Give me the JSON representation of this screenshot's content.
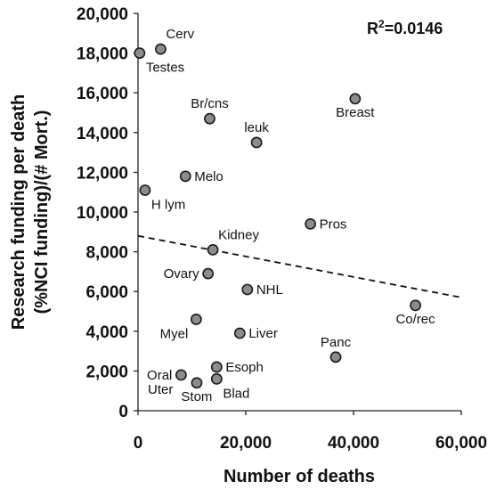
{
  "chart_data": {
    "type": "scatter",
    "xlabel": "Number of deaths",
    "ylabel_lines": [
      "Research funding per death",
      "(%NCI funding)/(# Mort.)"
    ],
    "xlim": [
      0,
      60000
    ],
    "ylim": [
      0,
      20000
    ],
    "x_ticks": [
      0,
      20000,
      40000,
      60000
    ],
    "x_tick_labels": [
      "0",
      "20,000",
      "40,000",
      "60,000"
    ],
    "y_ticks": [
      0,
      2000,
      4000,
      6000,
      8000,
      10000,
      12000,
      14000,
      16000,
      18000,
      20000
    ],
    "y_tick_labels": [
      "0",
      "2,000",
      "4,000",
      "6,000",
      "8,000",
      "10,000",
      "12,000",
      "14,000",
      "16,000",
      "18,000",
      "20,000"
    ],
    "annotation": {
      "prefix": "R",
      "sup": "2",
      "suffix": "=0.0146"
    },
    "trendline": {
      "style": "dashed",
      "x": [
        0,
        60000
      ],
      "y": [
        8800,
        5700
      ]
    },
    "points": [
      {
        "label": "Cerv",
        "x": 4200,
        "y": 18200,
        "pos": "above-right"
      },
      {
        "label": "Testes",
        "x": 300,
        "y": 18000,
        "pos": "below-right"
      },
      {
        "label": "Breast",
        "x": 40300,
        "y": 15700,
        "pos": "below"
      },
      {
        "label": "Br/cns",
        "x": 13300,
        "y": 14700,
        "pos": "above"
      },
      {
        "label": "leuk",
        "x": 22000,
        "y": 13500,
        "pos": "above"
      },
      {
        "label": "Melo",
        "x": 8800,
        "y": 11800,
        "pos": "right"
      },
      {
        "label": "H lym",
        "x": 1300,
        "y": 11100,
        "pos": "below-right"
      },
      {
        "label": "Pros",
        "x": 32000,
        "y": 9400,
        "pos": "right"
      },
      {
        "label": "Kidney",
        "x": 13900,
        "y": 8100,
        "pos": "above-right"
      },
      {
        "label": "Ovary",
        "x": 13000,
        "y": 6900,
        "pos": "left"
      },
      {
        "label": "NHL",
        "x": 20300,
        "y": 6100,
        "pos": "right"
      },
      {
        "label": "Co/rec",
        "x": 51500,
        "y": 5300,
        "pos": "below"
      },
      {
        "label": "Myel",
        "x": 10800,
        "y": 4600,
        "pos": "below-left"
      },
      {
        "label": "Liver",
        "x": 18900,
        "y": 3900,
        "pos": "right"
      },
      {
        "label": "Panc",
        "x": 36700,
        "y": 2700,
        "pos": "above"
      },
      {
        "label": "Esoph",
        "x": 14600,
        "y": 2200,
        "pos": "right"
      },
      {
        "label": "Oral",
        "x": 8000,
        "y": 1800,
        "pos": "left"
      },
      {
        "label": "Uter",
        "x": 8000,
        "y": 1800,
        "pos": "below-left"
      },
      {
        "label": "Blad",
        "x": 14600,
        "y": 1600,
        "pos": "below-right"
      },
      {
        "label": "Stom",
        "x": 10900,
        "y": 1400,
        "pos": "below"
      }
    ]
  }
}
